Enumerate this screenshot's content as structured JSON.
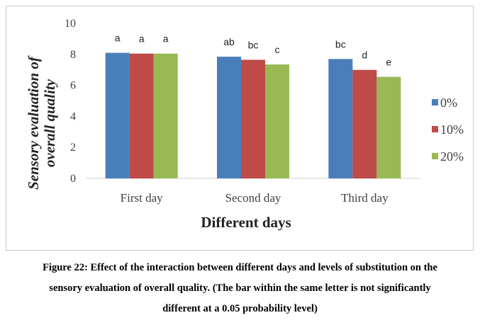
{
  "chart_data": {
    "type": "bar",
    "categories": [
      "First day",
      "Second day",
      "Third day"
    ],
    "series": [
      {
        "name": "0%",
        "color": "#4a7ebb",
        "values": [
          8.1,
          7.85,
          7.7
        ],
        "labels": [
          "a",
          "ab",
          "bc"
        ]
      },
      {
        "name": "10%",
        "color": "#be4b48",
        "values": [
          8.05,
          7.65,
          7.0
        ],
        "labels": [
          "a",
          "bc",
          "d"
        ]
      },
      {
        "name": "20%",
        "color": "#98b954",
        "values": [
          8.05,
          7.35,
          6.55
        ],
        "labels": [
          "a",
          "c",
          "e"
        ]
      }
    ],
    "xlabel": "Different days",
    "ylabel": [
      "Sensory evaluation of",
      "overall quality"
    ],
    "ylim": [
      0,
      10
    ],
    "yticks": [
      0,
      2,
      4,
      6,
      8,
      10
    ],
    "grid": false,
    "legend_position": "right"
  },
  "caption": [
    "Figure 22: Effect of the interaction between different days and levels of substitution on the",
    "sensory evaluation of overall quality. (The bar within the same letter is not significantly",
    "different at a 0.05 probability level)"
  ]
}
